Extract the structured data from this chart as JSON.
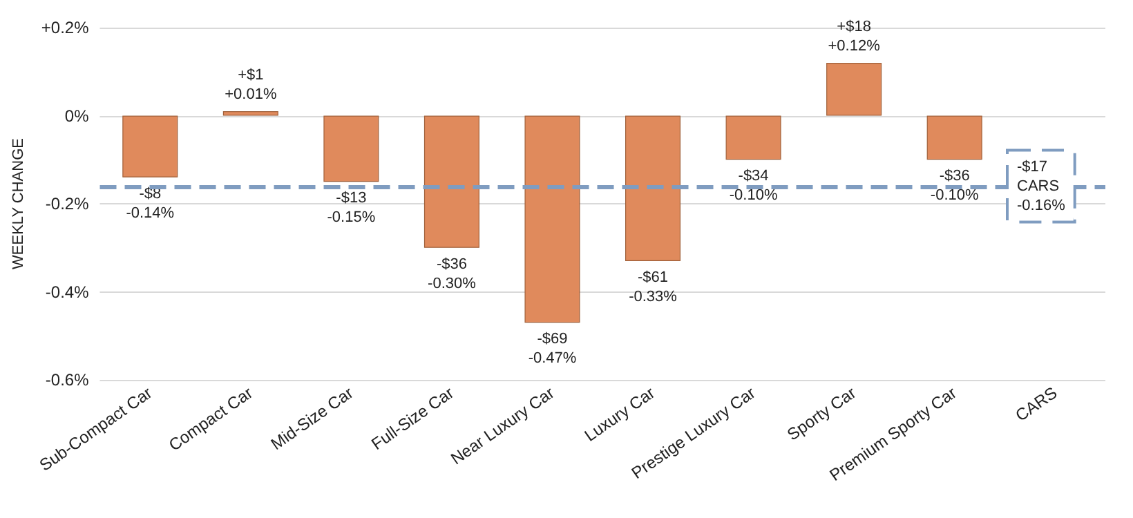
{
  "chart_data": {
    "type": "bar",
    "ylabel": "WEEKLY CHANGE",
    "categories": [
      "Sub-Compact Car",
      "Compact Car",
      "Mid-Size Car",
      "Full-Size Car",
      "Near Luxury Car",
      "Luxury Car",
      "Prestige Luxury Car",
      "Sporty Car",
      "Premium Sporty Car",
      "CARS"
    ],
    "values": [
      -0.14,
      0.01,
      -0.15,
      -0.3,
      -0.47,
      -0.33,
      -0.1,
      0.12,
      -0.1,
      null
    ],
    "value_labels": [
      "-$8\n-0.14%",
      "+$1\n+0.01%",
      "-$13\n-0.15%",
      "-$36\n-0.30%",
      "-$69\n-0.47%",
      "-$61\n-0.33%",
      "-$34\n-0.10%",
      "+$18\n+0.12%",
      "-$36\n-0.10%",
      null
    ],
    "color": "#e08a5c",
    "ylim": [
      -0.6,
      0.2
    ],
    "yticks": [
      {
        "value": 0.2,
        "label": "+0.2%"
      },
      {
        "value": 0,
        "label": "0%"
      },
      {
        "value": -0.2,
        "label": "-0.2%"
      },
      {
        "value": -0.4,
        "label": "-0.4%"
      },
      {
        "value": -0.6,
        "label": "-0.6%"
      }
    ],
    "grid": "y",
    "ref_lines": [
      {
        "axis": "y",
        "value": -0.16,
        "label": "-$17\nCARS\n-0.16%",
        "color": "#7f9cc0",
        "line_style": "dashed"
      }
    ]
  }
}
